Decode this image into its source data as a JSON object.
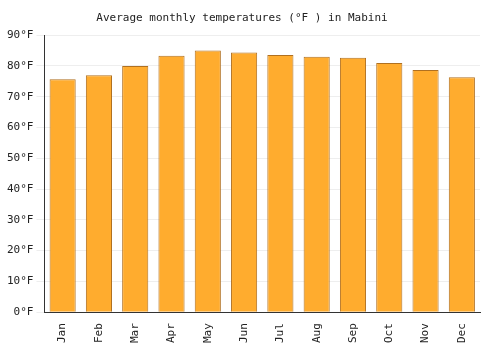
{
  "chart_data": {
    "type": "bar",
    "title": "Average monthly temperatures (°F ) in Mabini",
    "categories": [
      "Jan",
      "Feb",
      "Mar",
      "Apr",
      "May",
      "Jun",
      "Jul",
      "Aug",
      "Sep",
      "Oct",
      "Nov",
      "Dec"
    ],
    "values": [
      75.7,
      77,
      80,
      83.3,
      85,
      84.4,
      83.6,
      83,
      82.7,
      81,
      78.7,
      76.3
    ],
    "color": "#ffac2e",
    "ylim": [
      0,
      90
    ],
    "yticks": [
      {
        "value": 0,
        "label": "0°F"
      },
      {
        "value": 10,
        "label": "10°F"
      },
      {
        "value": 20,
        "label": "20°F"
      },
      {
        "value": 30,
        "label": "30°F"
      },
      {
        "value": 40,
        "label": "40°F"
      },
      {
        "value": 50,
        "label": "50°F"
      },
      {
        "value": 60,
        "label": "60°F"
      },
      {
        "value": 70,
        "label": "70°F"
      },
      {
        "value": 80,
        "label": "80°F"
      },
      {
        "value": 90,
        "label": "90°F"
      }
    ],
    "grid": true
  }
}
